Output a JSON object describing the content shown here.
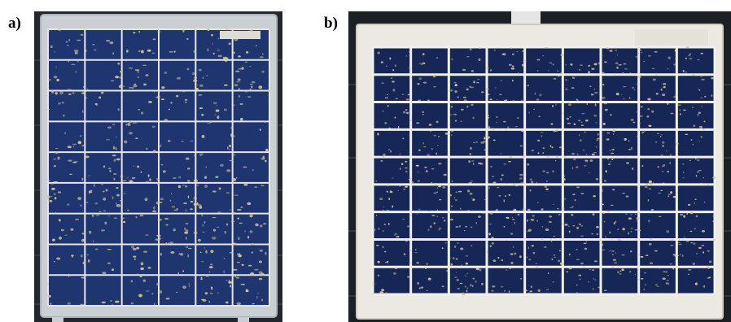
{
  "figure": {
    "panels": [
      {
        "label": "a)"
      },
      {
        "label": "b)"
      }
    ],
    "colors": {
      "cell_blue": "#1f3570",
      "cell_blue_dark": "#162656",
      "frame_silver": "#c9cfd3",
      "frame_white": "#ece9e2",
      "dust": "#d8c79b",
      "background_dark": "#1c1f24"
    }
  }
}
